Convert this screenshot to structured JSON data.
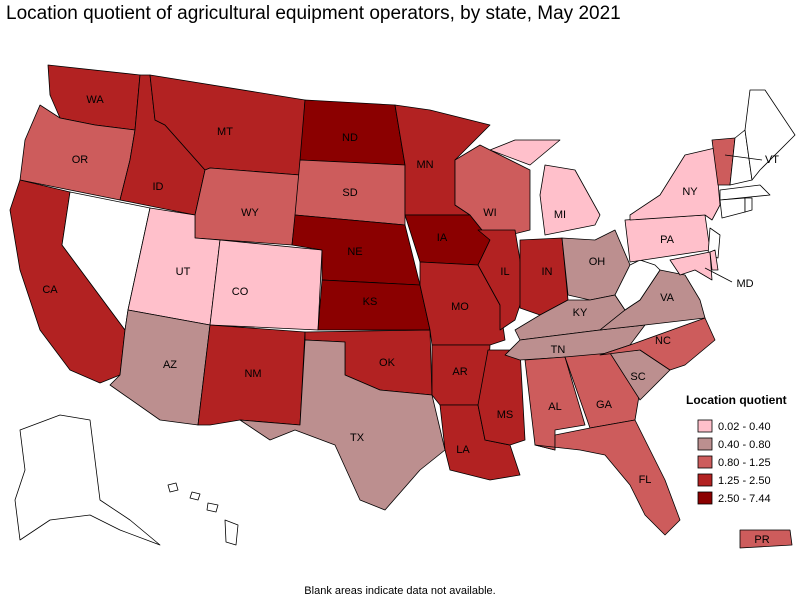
{
  "title": "Location quotient of agricultural equipment operators, by state, May 2021",
  "legend": {
    "title": "Location quotient",
    "classes": [
      {
        "label": "0.02 - 0.40",
        "color": "#ffc0cb"
      },
      {
        "label": "0.40 - 0.80",
        "color": "#bc8f8f"
      },
      {
        "label": "0.80 - 1.25",
        "color": "#cd5c5c"
      },
      {
        "label": "1.25 - 2.50",
        "color": "#b22222"
      },
      {
        "label": "2.50 - 7.44",
        "color": "#8b0000"
      }
    ]
  },
  "states": [
    {
      "label": "WA",
      "class": 3
    },
    {
      "label": "OR",
      "class": 2
    },
    {
      "label": "CA",
      "class": 3
    },
    {
      "class": null
    },
    {
      "label": "ID",
      "class": 3
    },
    {
      "label": "MT",
      "class": 3
    },
    {
      "label": "WY",
      "class": 2
    },
    {
      "label": "UT",
      "class": 0
    },
    {
      "label": "CO",
      "class": 0
    },
    {
      "label": "AZ",
      "class": 1
    },
    {
      "label": "NM",
      "class": 3
    },
    {
      "label": "ND",
      "class": 4
    },
    {
      "label": "SD",
      "class": 2
    },
    {
      "label": "NE",
      "class": 4
    },
    {
      "label": "KS",
      "class": 4
    },
    {
      "label": "OK",
      "class": 3
    },
    {
      "label": "TX",
      "class": 1
    },
    {
      "label": "MN",
      "class": 3
    },
    {
      "label": "IA",
      "class": 4
    },
    {
      "label": "MO",
      "class": 3
    },
    {
      "label": "AR",
      "class": 3
    },
    {
      "label": "LA",
      "class": 3
    },
    {
      "label": "MS",
      "class": 3
    },
    {
      "label": "WI",
      "class": 2
    },
    {
      "label": "IL",
      "class": 3
    },
    {
      "label": "MI",
      "class": 0
    },
    {
      "label": "IN",
      "class": 3
    },
    {
      "label": "OH",
      "class": 1
    },
    {
      "label": "KY",
      "class": 1
    },
    {
      "label": "TN",
      "class": 1
    },
    {
      "label": "AL",
      "class": 2
    },
    {
      "label": "GA",
      "class": 2
    },
    {
      "label": "FL",
      "class": 2
    },
    {
      "label": "SC",
      "class": 1
    },
    {
      "label": "NC",
      "class": 2
    },
    {
      "label": "VA",
      "class": 1
    },
    {
      "class": null
    },
    {
      "label": "PA",
      "class": 0
    },
    {
      "label": "NY",
      "class": 0
    },
    {
      "class": null
    },
    {
      "label": "MD",
      "class": 0
    },
    {
      "class": 0
    },
    {
      "label": "VT",
      "class": 2
    },
    {
      "class": null
    },
    {
      "class": null
    },
    {
      "class": null
    },
    {
      "class": null
    },
    {
      "class": null
    },
    {
      "class": null
    },
    {
      "class": null
    },
    {
      "label": "PR",
      "class": 2
    }
  ],
  "footnote": "Blank areas indicate data not available."
}
